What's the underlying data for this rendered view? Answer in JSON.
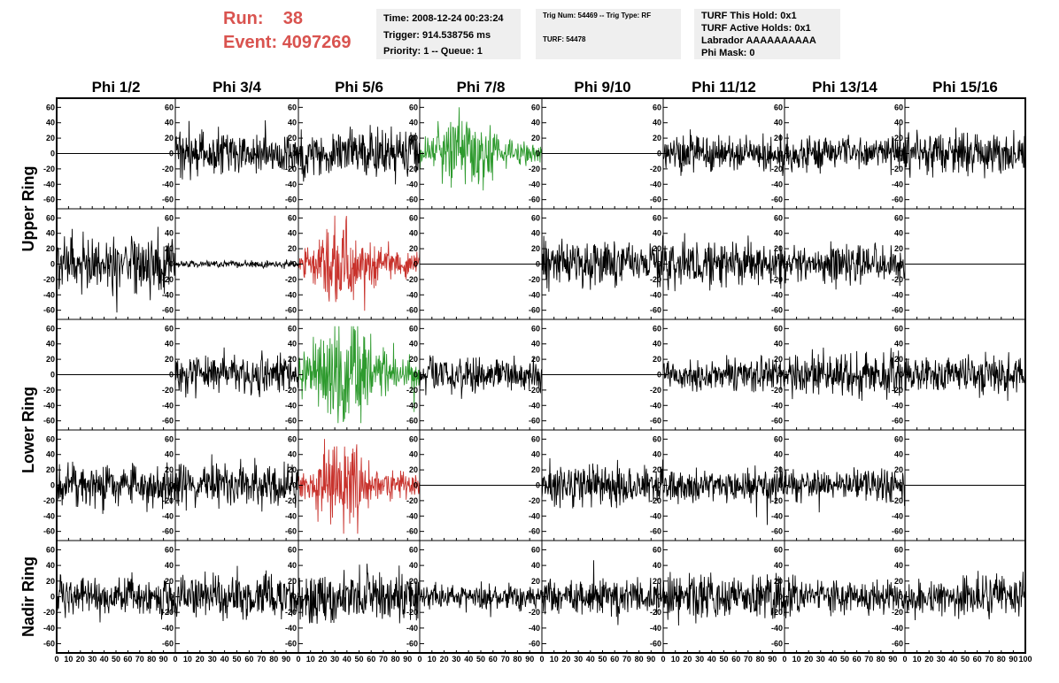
{
  "header": {
    "run_label": "Run:",
    "run_value": "38",
    "event_label": "Event:",
    "event_value": "4097269",
    "accent_color": "#d9534f"
  },
  "info_time": {
    "time": "Time: 2008-12-24 00:23:24",
    "trigger": "Trigger: 914.538756 ms",
    "priority": "Priority: 1 -- Queue: 1"
  },
  "info_trig": {
    "trig": "Trig Num: 54469 -- Trig Type: RF",
    "turf": "TURF: 54478"
  },
  "info_turf": {
    "this_hold": "TURF This Hold: 0x1",
    "active_holds": "TURF Active Holds: 0x1",
    "labrador": "Labrador AAAAAAAAAA",
    "phi_mask": "Phi Mask: 0"
  },
  "chart_data": {
    "type": "line",
    "columns": [
      "Phi 1/2",
      "Phi 3/4",
      "Phi 5/6",
      "Phi 7/8",
      "Phi 9/10",
      "Phi 11/12",
      "Phi 13/14",
      "Phi 15/16"
    ],
    "row_labels": [
      {
        "text": "Upper Ring",
        "rows": [
          0,
          1
        ]
      },
      {
        "text": "Lower Ring",
        "rows": [
          2,
          3
        ]
      },
      {
        "text": "Nadir Ring",
        "rows": [
          4,
          4
        ]
      }
    ],
    "ylim": [
      -65,
      65
    ],
    "xlim": [
      0,
      100
    ],
    "y_ticks": [
      -60,
      -40,
      -20,
      0,
      20,
      40,
      60
    ],
    "x_ticks": [
      0,
      10,
      20,
      30,
      40,
      50,
      60,
      70,
      80,
      90,
      100
    ],
    "colors": {
      "normal": "#000000",
      "green": "#2e9a2e",
      "red": "#c8322c"
    },
    "channels": [
      [
        {
          "amp": 0,
          "color": "normal"
        },
        {
          "amp": 13,
          "color": "normal"
        },
        {
          "amp": 15,
          "color": "normal"
        },
        {
          "amp": 14,
          "color": "green",
          "burst": true
        },
        {
          "amp": 0,
          "color": "normal"
        },
        {
          "amp": 11,
          "color": "normal"
        },
        {
          "amp": 10,
          "color": "normal"
        },
        {
          "amp": 13,
          "color": "normal"
        }
      ],
      [
        {
          "amp": 17,
          "color": "normal"
        },
        {
          "amp": 2,
          "color": "normal"
        },
        {
          "amp": 16,
          "color": "red",
          "burst": true
        },
        {
          "amp": 0,
          "color": "normal"
        },
        {
          "amp": 13,
          "color": "normal"
        },
        {
          "amp": 14,
          "color": "normal"
        },
        {
          "amp": 12,
          "color": "normal"
        },
        {
          "amp": 0,
          "color": "normal"
        }
      ],
      [
        {
          "amp": 0,
          "color": "normal"
        },
        {
          "amp": 12,
          "color": "normal"
        },
        {
          "amp": 22,
          "color": "green",
          "burst": true
        },
        {
          "amp": 11,
          "color": "normal"
        },
        {
          "amp": 0,
          "color": "normal"
        },
        {
          "amp": 10,
          "color": "normal"
        },
        {
          "amp": 13,
          "color": "normal"
        },
        {
          "amp": 12,
          "color": "normal"
        }
      ],
      [
        {
          "amp": 13,
          "color": "normal"
        },
        {
          "amp": 13,
          "color": "normal"
        },
        {
          "amp": 15,
          "color": "red",
          "burst": true
        },
        {
          "amp": 0,
          "color": "normal"
        },
        {
          "amp": 13,
          "color": "normal"
        },
        {
          "amp": 10,
          "color": "normal"
        },
        {
          "amp": 9,
          "color": "normal"
        },
        {
          "amp": 0,
          "color": "normal"
        }
      ],
      [
        {
          "amp": 11,
          "color": "normal"
        },
        {
          "amp": 13,
          "color": "normal"
        },
        {
          "amp": 15,
          "color": "normal"
        },
        {
          "amp": 8,
          "color": "normal"
        },
        {
          "amp": 11,
          "color": "normal"
        },
        {
          "amp": 14,
          "color": "normal"
        },
        {
          "amp": 10,
          "color": "normal"
        },
        {
          "amp": 11,
          "color": "normal"
        }
      ]
    ]
  }
}
